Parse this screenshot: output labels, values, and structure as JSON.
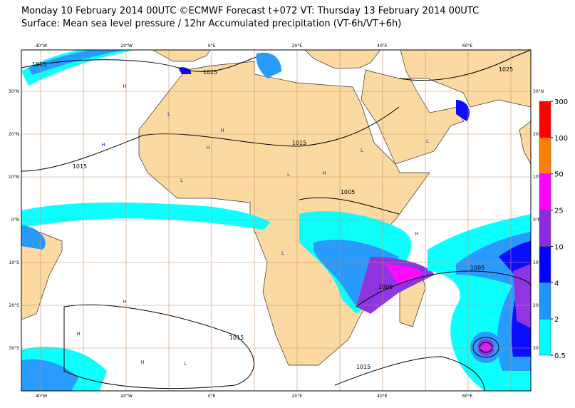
{
  "header": {
    "title": "Monday 10 February 2014 00UTC ©ECMWF Forecast t+072 VT: Thursday 13 February 2014 00UTC",
    "subtitle": "Surface: Mean sea level pressure / 12hr Accumulated precipitation (VT-6h/VT+6h)"
  },
  "map": {
    "lon_labels": [
      "40°W",
      "20°W",
      "0°E",
      "20°E",
      "40°E",
      "60°E"
    ],
    "lat_labels": [
      "30°N",
      "20°N",
      "10°N",
      "0°N",
      "10°S",
      "20°S",
      "30°S"
    ],
    "isobar_labels": [
      "1015",
      "1025",
      "1025",
      "1015",
      "1015",
      "1005",
      "1005",
      "1005",
      "1015",
      "1015"
    ],
    "pressure_centers": [
      "H",
      "L",
      "H",
      "L",
      "H",
      "H",
      "L",
      "L",
      "H",
      "L",
      "H",
      "H",
      "L",
      "H",
      "H",
      "L"
    ]
  },
  "legend": {
    "levels": [
      0.5,
      2,
      4,
      10,
      25,
      50,
      100,
      300
    ],
    "colors": [
      "#00ffff",
      "#1e96ff",
      "#0000ff",
      "#8a2be2",
      "#ff00ff",
      "#ff8000",
      "#ff0000"
    ]
  }
}
